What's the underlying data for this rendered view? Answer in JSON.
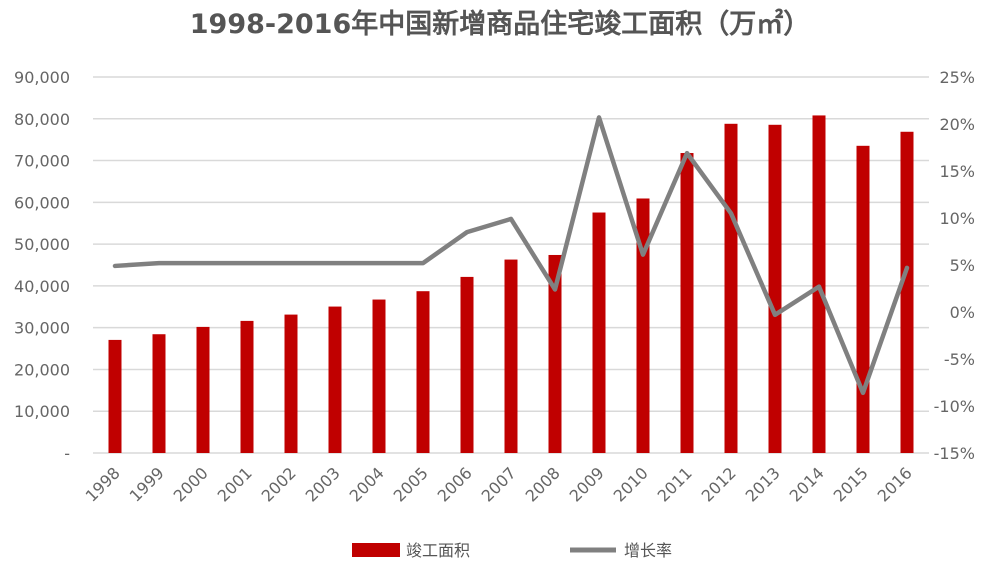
{
  "chart_data": {
    "type": "bar+line",
    "title": "1998-2016年中国新增商品住宅竣工面积（万㎡）",
    "categories": [
      "1998",
      "1999",
      "2000",
      "2001",
      "2002",
      "2003",
      "2004",
      "2005",
      "2006",
      "2007",
      "2008",
      "2009",
      "2010",
      "2011",
      "2012",
      "2013",
      "2014",
      "2015",
      "2016"
    ],
    "series": [
      {
        "name": "竣工面积",
        "type": "bar",
        "axis": "left",
        "color": "#c00000",
        "values": [
          27070,
          28430,
          30180,
          31620,
          33130,
          35050,
          36730,
          38730,
          42150,
          46300,
          47400,
          57560,
          60920,
          71800,
          78800,
          78560,
          80800,
          73530,
          76890
        ]
      },
      {
        "name": "增长率",
        "type": "line",
        "axis": "right",
        "color": "#808080",
        "values": [
          4.9,
          5.2,
          5.2,
          5.2,
          5.2,
          5.2,
          5.2,
          5.2,
          8.5,
          9.9,
          2.4,
          20.7,
          6.1,
          16.9,
          10.5,
          -0.3,
          2.7,
          -8.6,
          4.7
        ]
      }
    ],
    "left_axis": {
      "ylim": [
        0,
        90000
      ],
      "ticks": [
        0,
        10000,
        20000,
        30000,
        40000,
        50000,
        60000,
        70000,
        80000,
        90000
      ],
      "tick_labels": [
        "-",
        "10,000",
        "20,000",
        "30,000",
        "40,000",
        "50,000",
        "60,000",
        "70,000",
        "80,000",
        "90,000"
      ]
    },
    "right_axis": {
      "ylim": [
        -15,
        25
      ],
      "ticks": [
        -15,
        -10,
        -5,
        0,
        5,
        10,
        15,
        20,
        25
      ],
      "tick_labels": [
        "-15%",
        "-10%",
        "-5%",
        "0%",
        "5%",
        "10%",
        "15%",
        "20%",
        "25%"
      ]
    },
    "grid": true,
    "legend": {
      "placement": "bottom",
      "entries": [
        "竣工面积",
        "增长率"
      ]
    }
  }
}
